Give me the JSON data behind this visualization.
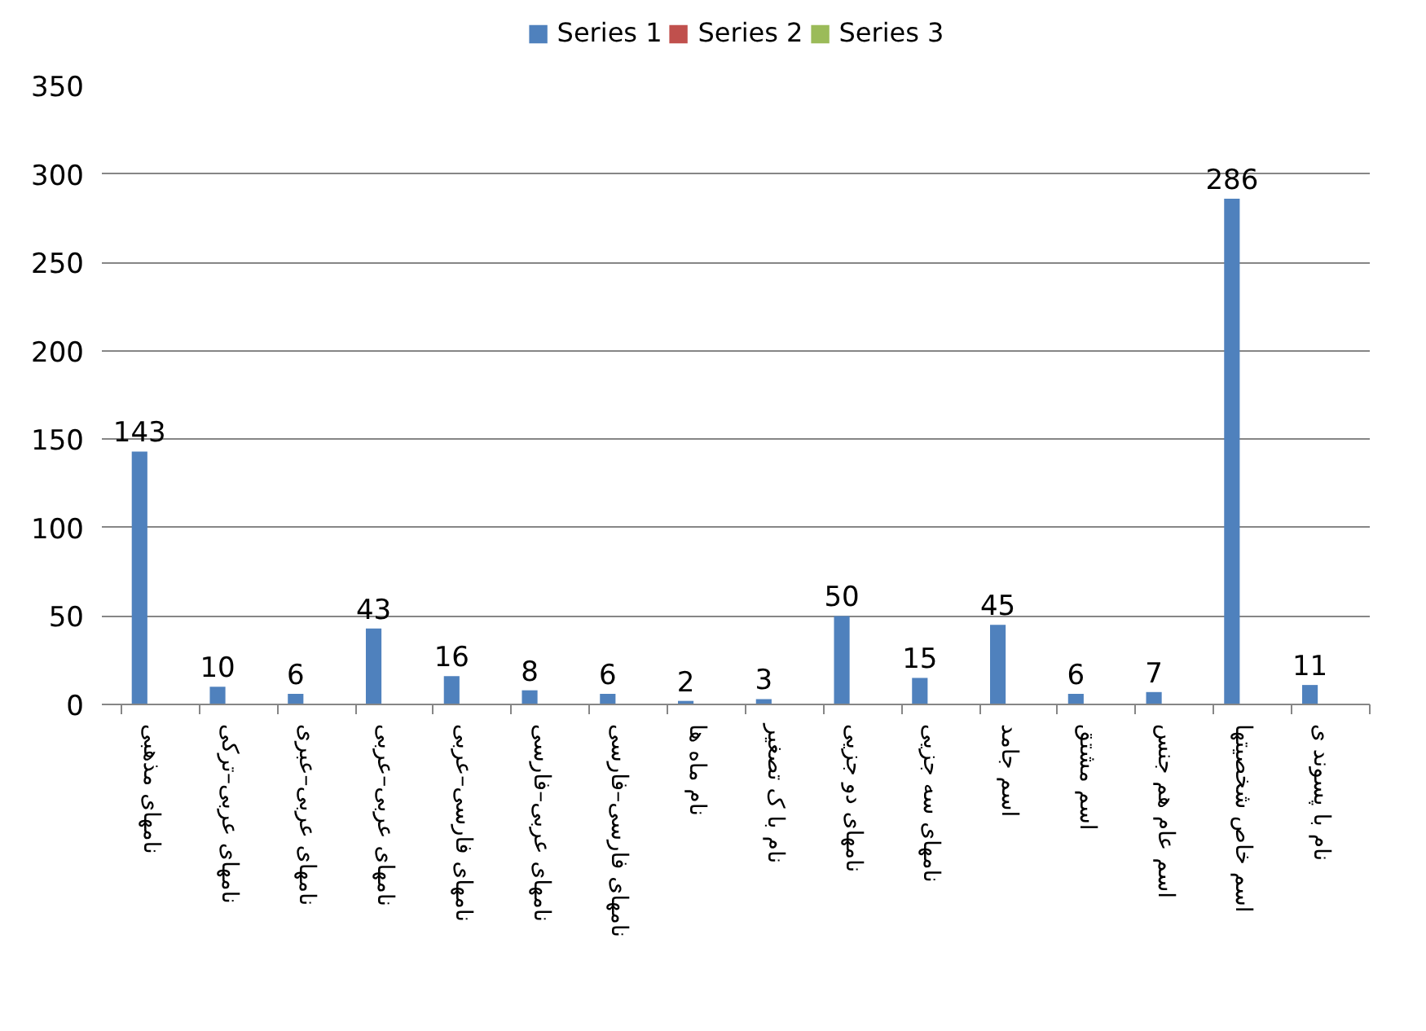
{
  "chart_data": {
    "type": "bar",
    "categories": [
      "نامهای مذهبی",
      "نامهای عربی–ترکی",
      "نامهای عربی–عبری",
      "نامهای عربی–عربی",
      "نامهای فارسی–عربی",
      "نامهای عربی–فارسی",
      "نامهای فارسی–فارسی",
      "نام ماه ها",
      "نام با ک تصغیر",
      "نامهای دو جزیی",
      "نامهای سه جزیی",
      "اسم جامد",
      "اسم مشتق",
      "اسم عام هم جنس",
      "اسم خاص شخصیتها",
      "نام با پسوند ی"
    ],
    "series": [
      {
        "name": "Series 1",
        "color": "#4f81bd",
        "values": [
          143,
          10,
          6,
          43,
          16,
          8,
          6,
          2,
          3,
          50,
          15,
          45,
          6,
          7,
          286,
          11
        ]
      },
      {
        "name": "Series 2",
        "color": "#c0504d",
        "values": [
          null,
          null,
          null,
          null,
          null,
          null,
          null,
          null,
          null,
          null,
          null,
          null,
          null,
          null,
          null,
          null
        ]
      },
      {
        "name": "Series 3",
        "color": "#9bbb59",
        "values": [
          null,
          null,
          null,
          null,
          null,
          null,
          null,
          null,
          null,
          null,
          null,
          null,
          null,
          null,
          null,
          null
        ]
      }
    ],
    "ylim": [
      0,
      350
    ],
    "yticks": [
      0,
      50,
      100,
      150,
      200,
      250,
      300,
      350
    ],
    "grid": "y",
    "legend": "top",
    "data_labels": true
  }
}
